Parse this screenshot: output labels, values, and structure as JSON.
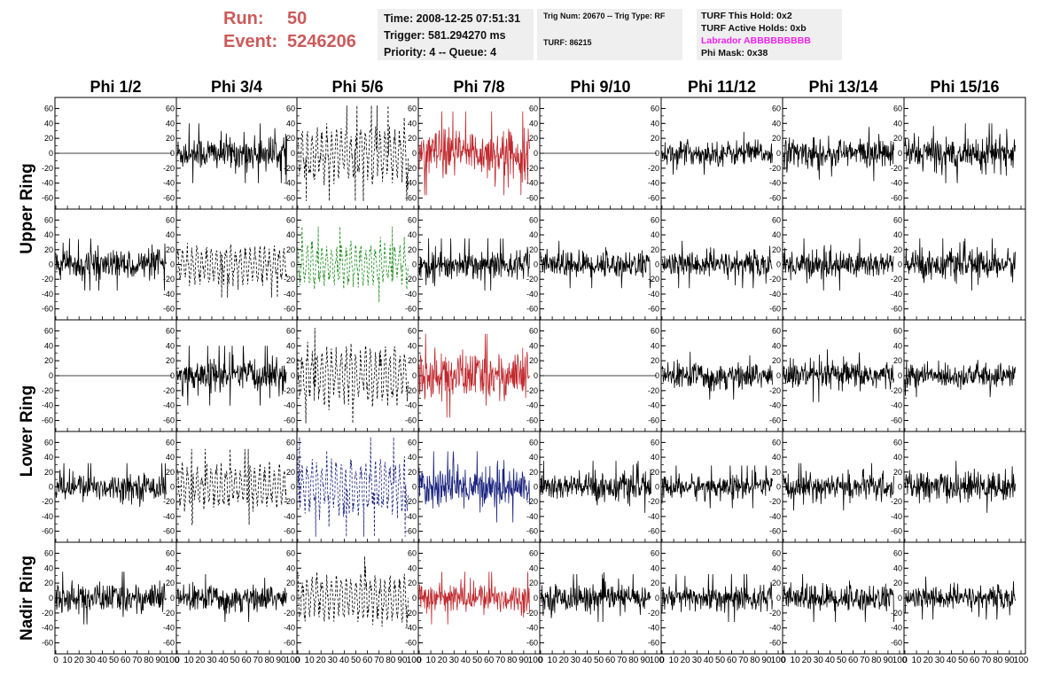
{
  "header": {
    "run_label": "Run:",
    "run_value": "50",
    "event_label": "Event:",
    "event_value": "5246206"
  },
  "info_time": {
    "time": "Time: 2008-12-25 07:51:31",
    "trigger": "Trigger: 581.294270 ms",
    "priority": "Priority: 4 -- Queue: 4"
  },
  "info_trig": {
    "line1": "Trig Num: 20670 -- Trig Type: RF",
    "line2": "TURF: 86215"
  },
  "info_turf": {
    "this_hold": "TURF This Hold: 0x2",
    "active_holds": "TURF Active Holds: 0xb",
    "labrador": "Labrador ABBBBBBBBB",
    "phi_mask": "Phi Mask: 0x38"
  },
  "colors": {
    "run_event": "#cc5a5a",
    "labrador": "#ee22ee",
    "red": "#c0282d",
    "green": "#1a8a1a",
    "blue": "#1a237e",
    "black": "#000000"
  },
  "columns": [
    "Phi 1/2",
    "Phi 3/4",
    "Phi 5/6",
    "Phi 7/8",
    "Phi 9/10",
    "Phi 11/12",
    "Phi 13/14",
    "Phi 15/16"
  ],
  "ring_labels": [
    "Upper Ring",
    "Lower Ring",
    "Nadir Ring"
  ],
  "y_ticks": [
    "60",
    "40",
    "20",
    "0",
    "-20",
    "-40",
    "-60"
  ],
  "x_ticks": [
    "0",
    "10",
    "20",
    "30",
    "40",
    "50",
    "60",
    "70",
    "80",
    "90",
    "100"
  ],
  "chart_data": {
    "type": "line",
    "xlim": [
      0,
      100
    ],
    "ylim": [
      -70,
      70
    ],
    "grid": false,
    "rows": 5,
    "cols": 8,
    "panels": [
      [
        {
          "style": "flat",
          "color": "black",
          "amp": 0
        },
        {
          "style": "solid",
          "color": "black",
          "amp": 25
        },
        {
          "style": "dashed",
          "color": "black",
          "amp": 40
        },
        {
          "style": "solid",
          "color": "red",
          "amp": 35
        },
        {
          "style": "flat",
          "color": "black",
          "amp": 0
        },
        {
          "style": "solid",
          "color": "black",
          "amp": 18
        },
        {
          "style": "solid",
          "color": "black",
          "amp": 22
        },
        {
          "style": "solid",
          "color": "black",
          "amp": 25
        }
      ],
      [
        {
          "style": "solid",
          "color": "black",
          "amp": 22
        },
        {
          "style": "dashed",
          "color": "black",
          "amp": 28
        },
        {
          "style": "dashed",
          "color": "green",
          "amp": 32
        },
        {
          "style": "solid",
          "color": "black",
          "amp": 22
        },
        {
          "style": "solid",
          "color": "black",
          "amp": 20
        },
        {
          "style": "solid",
          "color": "black",
          "amp": 20
        },
        {
          "style": "solid",
          "color": "black",
          "amp": 22
        },
        {
          "style": "solid",
          "color": "black",
          "amp": 22
        }
      ],
      [
        {
          "style": "flat",
          "color": "black",
          "amp": 0
        },
        {
          "style": "solid",
          "color": "black",
          "amp": 25
        },
        {
          "style": "dashed",
          "color": "black",
          "amp": 40
        },
        {
          "style": "solid",
          "color": "red",
          "amp": 35
        },
        {
          "style": "flat",
          "color": "black",
          "amp": 0
        },
        {
          "style": "solid",
          "color": "black",
          "amp": 20
        },
        {
          "style": "solid",
          "color": "black",
          "amp": 22
        },
        {
          "style": "solid",
          "color": "black",
          "amp": 18
        }
      ],
      [
        {
          "style": "solid",
          "color": "black",
          "amp": 20
        },
        {
          "style": "dashed",
          "color": "black",
          "amp": 32
        },
        {
          "style": "dashed",
          "color": "blue",
          "amp": 42
        },
        {
          "style": "solid",
          "color": "blue",
          "amp": 30
        },
        {
          "style": "solid",
          "color": "black",
          "amp": 22
        },
        {
          "style": "solid",
          "color": "black",
          "amp": 18
        },
        {
          "style": "solid",
          "color": "black",
          "amp": 20
        },
        {
          "style": "solid",
          "color": "black",
          "amp": 22
        }
      ],
      [
        {
          "style": "solid",
          "color": "black",
          "amp": 22
        },
        {
          "style": "solid",
          "color": "black",
          "amp": 20
        },
        {
          "style": "dashed",
          "color": "black",
          "amp": 35
        },
        {
          "style": "solid",
          "color": "red",
          "amp": 22
        },
        {
          "style": "solid",
          "color": "black",
          "amp": 20
        },
        {
          "style": "solid",
          "color": "black",
          "amp": 20
        },
        {
          "style": "solid",
          "color": "black",
          "amp": 20
        },
        {
          "style": "solid",
          "color": "black",
          "amp": 18
        }
      ]
    ]
  }
}
